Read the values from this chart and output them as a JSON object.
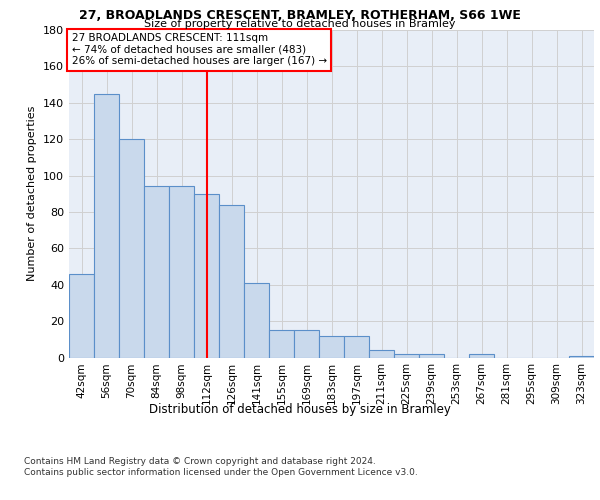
{
  "title_line1": "27, BROADLANDS CRESCENT, BRAMLEY, ROTHERHAM, S66 1WE",
  "title_line2": "Size of property relative to detached houses in Bramley",
  "xlabel": "Distribution of detached houses by size in Bramley",
  "ylabel": "Number of detached properties",
  "categories": [
    "42sqm",
    "56sqm",
    "70sqm",
    "84sqm",
    "98sqm",
    "112sqm",
    "126sqm",
    "141sqm",
    "155sqm",
    "169sqm",
    "183sqm",
    "197sqm",
    "211sqm",
    "225sqm",
    "239sqm",
    "253sqm",
    "267sqm",
    "281sqm",
    "295sqm",
    "309sqm",
    "323sqm"
  ],
  "values": [
    46,
    145,
    120,
    94,
    94,
    90,
    84,
    41,
    15,
    15,
    12,
    12,
    4,
    2,
    2,
    0,
    2,
    0,
    0,
    0,
    1
  ],
  "bar_color": "#c9d9ec",
  "bar_edge_color": "#5b8fc9",
  "grid_color": "#d0d0d0",
  "annotation_box_text": "27 BROADLANDS CRESCENT: 111sqm\n← 74% of detached houses are smaller (483)\n26% of semi-detached houses are larger (167) →",
  "annotation_box_color": "white",
  "annotation_box_edge_color": "red",
  "redline_x": 5,
  "ylim": [
    0,
    180
  ],
  "yticks": [
    0,
    20,
    40,
    60,
    80,
    100,
    120,
    140,
    160,
    180
  ],
  "footnote": "Contains HM Land Registry data © Crown copyright and database right 2024.\nContains public sector information licensed under the Open Government Licence v3.0.",
  "background_color": "#e8eef7"
}
